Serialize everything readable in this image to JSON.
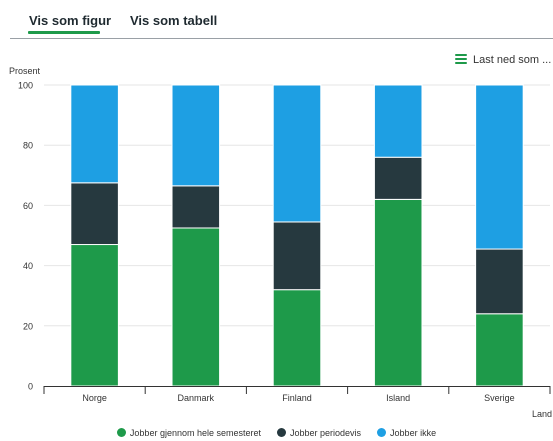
{
  "tabs": [
    {
      "label": "Vis som figur",
      "active": true
    },
    {
      "label": "Vis som tabell",
      "active": false
    }
  ],
  "download_label": "Last ned som ...",
  "icons": {
    "menu": "hamburger-menu-icon"
  },
  "colors": {
    "accent": "#1e9a4a",
    "series": [
      "#1e9a4a",
      "#26393f",
      "#1e9fe3"
    ]
  },
  "chart_data": {
    "type": "bar",
    "stacked": true,
    "categories": [
      "Norge",
      "Danmark",
      "Finland",
      "Island",
      "Sverige"
    ],
    "series": [
      {
        "name": "Jobber gjennom hele semesteret",
        "values": [
          47,
          52.5,
          32,
          62,
          24
        ]
      },
      {
        "name": "Jobber periodevis",
        "values": [
          20.5,
          14,
          22.5,
          14,
          21.5
        ]
      },
      {
        "name": "Jobber ikke",
        "values": [
          32.5,
          33.5,
          45.5,
          24,
          54.5
        ]
      }
    ],
    "ylabel": "Prosent",
    "xlabel": "Land",
    "ylim": [
      0,
      100
    ],
    "yticks": [
      0,
      20,
      40,
      60,
      80,
      100
    ],
    "grid": true,
    "legend": "bottom"
  }
}
